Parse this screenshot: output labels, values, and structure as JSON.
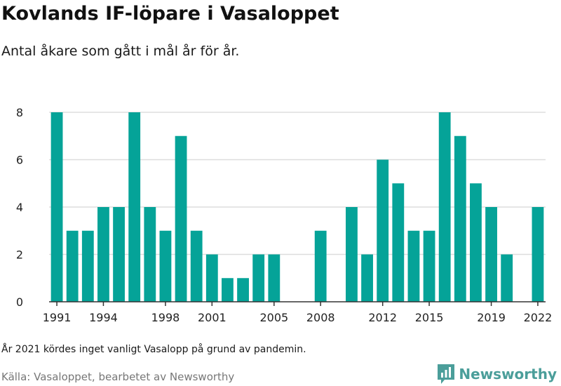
{
  "header": {
    "title": "Kovlands IF-löpare i Vasaloppet",
    "subtitle": "Antal åkare som gått i mål år för år."
  },
  "footer": {
    "note": "År 2021 kördes inget vanligt Vasalopp på grund av pandemin.",
    "source": "Källa: Vasaloppet, bearbetet av Newsworthy",
    "brand": "Newsworthy"
  },
  "colors": {
    "bar": "#05a398",
    "grid": "#dddddd",
    "axis": "#333333",
    "brand": "#4b9e9a"
  },
  "chart_data": {
    "type": "bar",
    "title": "Kovlands IF-löpare i Vasaloppet",
    "subtitle": "Antal åkare som gått i mål år för år.",
    "x": [
      1991,
      1992,
      1993,
      1994,
      1995,
      1996,
      1997,
      1998,
      1999,
      2000,
      2001,
      2002,
      2003,
      2004,
      2005,
      2006,
      2007,
      2008,
      2009,
      2010,
      2011,
      2012,
      2013,
      2014,
      2015,
      2016,
      2017,
      2018,
      2019,
      2020,
      2021,
      2022
    ],
    "values": [
      8,
      3,
      3,
      4,
      4,
      8,
      4,
      3,
      7,
      3,
      2,
      1,
      1,
      2,
      2,
      0,
      0,
      3,
      0,
      4,
      2,
      6,
      5,
      3,
      3,
      8,
      7,
      5,
      4,
      2,
      0,
      4
    ],
    "xticks": [
      1991,
      1994,
      1998,
      2001,
      2005,
      2008,
      2012,
      2015,
      2019,
      2022
    ],
    "yticks": [
      0,
      2,
      4,
      6,
      8
    ],
    "ylim": [
      0,
      8
    ],
    "xlabel": "",
    "ylabel": "",
    "grid": true
  }
}
